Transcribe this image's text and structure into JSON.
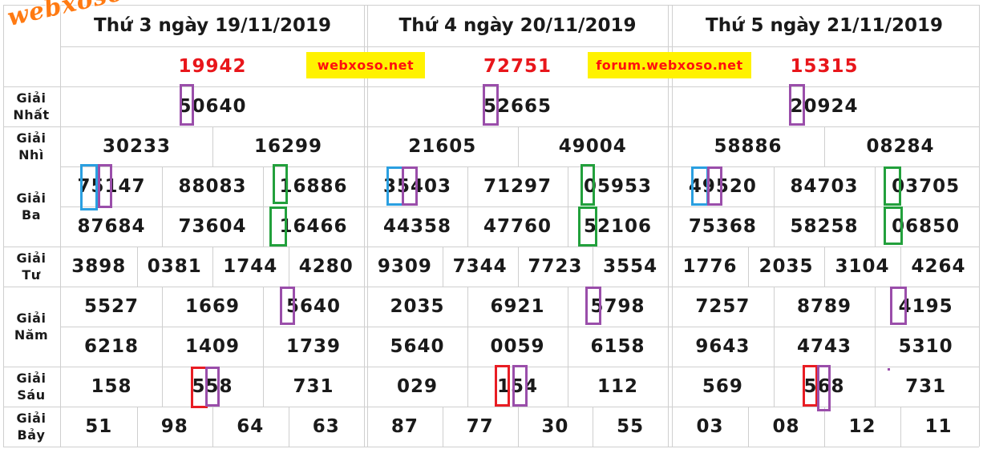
{
  "logo": "webxoso.net",
  "watermarks": [
    "webxoso.net",
    "forum.webxoso.net"
  ],
  "row_labels": {
    "nhat": [
      "Giải",
      "Nhất"
    ],
    "nhi": [
      "Giải",
      "Nhì"
    ],
    "ba": [
      "Giải",
      "Ba"
    ],
    "tu": [
      "Giải",
      "Tư"
    ],
    "nam": [
      "Giải",
      "Năm"
    ],
    "sau": [
      "Giải",
      "Sáu"
    ],
    "bay": [
      "Giải",
      "Bảy"
    ]
  },
  "days": [
    {
      "header": "Thứ 3 ngày 19/11/2019",
      "db": "19942",
      "nhat": "50640",
      "nhi": [
        "30233",
        "16299"
      ],
      "ba": [
        "75147",
        "88083",
        "16886",
        "87684",
        "73604",
        "16466"
      ],
      "tu": [
        "3898",
        "0381",
        "1744",
        "4280"
      ],
      "nam": [
        "5527",
        "1669",
        "5640",
        "6218",
        "1409",
        "1739"
      ],
      "sau": [
        "158",
        "558",
        "731"
      ],
      "bay": [
        "51",
        "98",
        "64",
        "63"
      ]
    },
    {
      "header": "Thứ 4 ngày 20/11/2019",
      "db": "72751",
      "nhat": "52665",
      "nhi": [
        "21605",
        "49004"
      ],
      "ba": [
        "35403",
        "71297",
        "05953",
        "44358",
        "47760",
        "52106"
      ],
      "tu": [
        "9309",
        "7344",
        "7723",
        "3554"
      ],
      "nam": [
        "2035",
        "6921",
        "5798",
        "5640",
        "0059",
        "6158"
      ],
      "sau": [
        "029",
        "154",
        "112"
      ],
      "bay": [
        "87",
        "77",
        "30",
        "55"
      ]
    },
    {
      "header": "Thứ 5 ngày 21/11/2019",
      "db": "15315",
      "nhat": "20924",
      "nhi": [
        "58886",
        "08284"
      ],
      "ba": [
        "49520",
        "84703",
        "03705",
        "75368",
        "58258",
        "06850"
      ],
      "tu": [
        "1776",
        "2035",
        "3104",
        "4264"
      ],
      "nam": [
        "7257",
        "8789",
        "4195",
        "9643",
        "4743",
        "5310"
      ],
      "sau": [
        "569",
        "568",
        "731"
      ],
      "bay": [
        "03",
        "08",
        "12",
        "11"
      ]
    }
  ]
}
